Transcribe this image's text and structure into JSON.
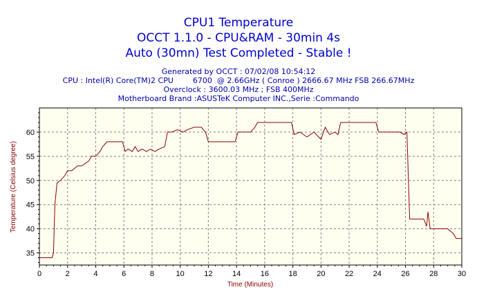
{
  "chart_data": {
    "type": "line",
    "title": "CPU1 Temperature",
    "subtitle": "OCCT 1.1.0 - CPU&RAM - 30min 4s",
    "status": "Auto (30mn) Test Completed - Stable !",
    "info_lines": [
      "Generated by OCCT : 07/02/08 10:54:12",
      "CPU : Intel(R) Core(TM)2 CPU        6700  @ 2.66GHz ( Conroe ) 2666.67 MHz FSB 266.67MHz",
      "Overclock : 3600.03 MHz ; FSB 400MHz",
      "Motherboard Brand :ASUSTeK Computer INC.,Serie :Commando"
    ],
    "xlabel": "Time (Minutes)",
    "ylabel": "Temperature (Celsius degree)",
    "xlim": [
      0,
      30
    ],
    "ylim": [
      32.5,
      65
    ],
    "xticks": [
      0,
      2,
      4,
      6,
      8,
      10,
      12,
      14,
      16,
      18,
      20,
      22,
      24,
      26,
      28,
      30
    ],
    "yticks": [
      35,
      40,
      45,
      50,
      55,
      60
    ],
    "grid": true,
    "colors": {
      "plot_background": "#fffff0",
      "line": "#8b0000",
      "grid": "#808080",
      "title": "#0000cc",
      "info": "#0000aa",
      "axis_label": "#8b0000"
    },
    "series": [
      {
        "x": [
          0,
          0.9,
          1.0,
          1.1,
          1.25,
          1.5,
          1.8,
          2.0,
          2.3,
          2.7,
          3.0,
          3.5,
          3.7,
          4.0,
          4.3,
          4.5,
          4.8,
          5.0,
          5.5,
          5.9,
          6.1,
          6.3,
          6.6,
          6.8,
          7.0,
          7.3,
          7.6,
          7.9,
          8.2,
          8.5,
          8.9,
          9.1,
          9.4,
          9.8,
          10.2,
          10.5,
          11.0,
          11.5,
          11.8,
          12.0,
          13.0,
          13.9,
          14.1,
          15.0,
          15.3,
          15.5,
          16.0,
          17.0,
          17.9,
          18.1,
          18.5,
          19.0,
          19.5,
          20.0,
          20.3,
          20.6,
          21.0,
          21.2,
          21.4,
          22.0,
          23.0,
          23.9,
          24.1,
          25.0,
          25.6,
          25.9,
          26.1,
          26.3,
          26.6,
          27.0,
          27.3,
          27.5,
          27.6,
          27.75,
          28.0,
          29.0,
          29.4,
          29.6,
          30.0
        ],
        "values": [
          34,
          34,
          35,
          45,
          49.5,
          50,
          51,
          52,
          52,
          53,
          53,
          54,
          55,
          55,
          56,
          57,
          58,
          58,
          58,
          58,
          56,
          56.5,
          56,
          57,
          56,
          56.5,
          56,
          56.5,
          56,
          56.5,
          57,
          60,
          60,
          60.5,
          60,
          60.5,
          61,
          61,
          60,
          58,
          58,
          58,
          60,
          60,
          61,
          62,
          62,
          62,
          62,
          59.5,
          60,
          59,
          60,
          58.5,
          61,
          59.5,
          60,
          59.5,
          62,
          62,
          62,
          62,
          60,
          60,
          60,
          59.5,
          60,
          42,
          42,
          42,
          42,
          40.5,
          43.5,
          40,
          40,
          40,
          39,
          38,
          38
        ]
      }
    ]
  }
}
